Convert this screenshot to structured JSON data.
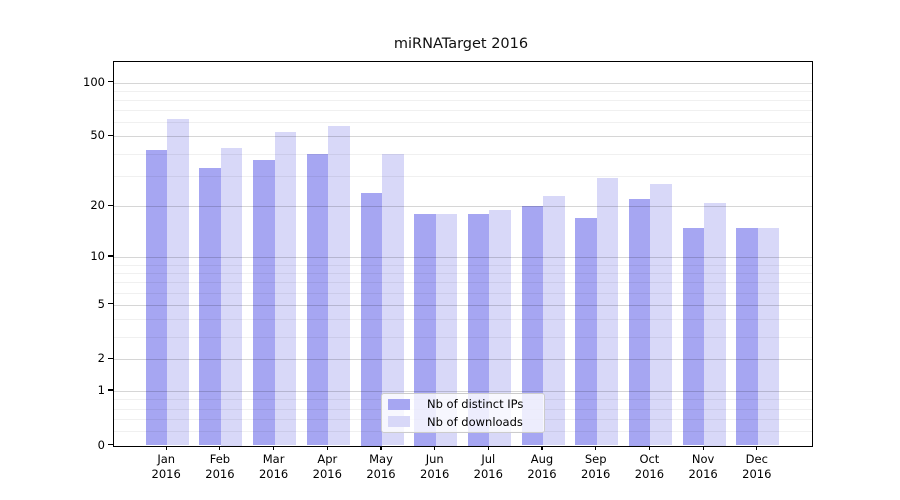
{
  "title": "miRNATarget 2016",
  "chart_data": {
    "type": "bar",
    "title": "miRNATarget 2016",
    "categories": [
      "Jan",
      "Feb",
      "Mar",
      "Apr",
      "May",
      "Jun",
      "Jul",
      "Aug",
      "Sep",
      "Oct",
      "Nov",
      "Dec"
    ],
    "category_year": "2016",
    "series": [
      {
        "name": "Nb of distinct IPs",
        "color": "#a6a6f2",
        "values": [
          42,
          33,
          37,
          40,
          24,
          18,
          18,
          20,
          17,
          22,
          15,
          15
        ]
      },
      {
        "name": "Nb of downloads",
        "color": "#d8d8f8",
        "values": [
          63,
          43,
          53,
          57,
          40,
          18,
          19,
          23,
          29,
          27,
          21,
          15
        ]
      }
    ],
    "yscale": "log1p",
    "ylim": [
      0,
      131
    ],
    "yticks": [
      0,
      1,
      2,
      5,
      10,
      20,
      50,
      100
    ],
    "minor_gridlines": [
      0.2,
      0.4,
      0.6,
      0.8,
      3,
      4,
      6,
      7,
      8,
      9,
      30,
      40,
      60,
      70,
      80,
      90
    ],
    "grid": true,
    "grid_on_top": true,
    "legend_position": "lower-center",
    "xlabel": "",
    "ylabel": "",
    "bar_group_width": 0.8,
    "colors": {
      "spine": "#000000",
      "major_grid": "rgba(0,0,0,0.16)",
      "minor_grid": "rgba(0,0,0,0.06)"
    }
  }
}
